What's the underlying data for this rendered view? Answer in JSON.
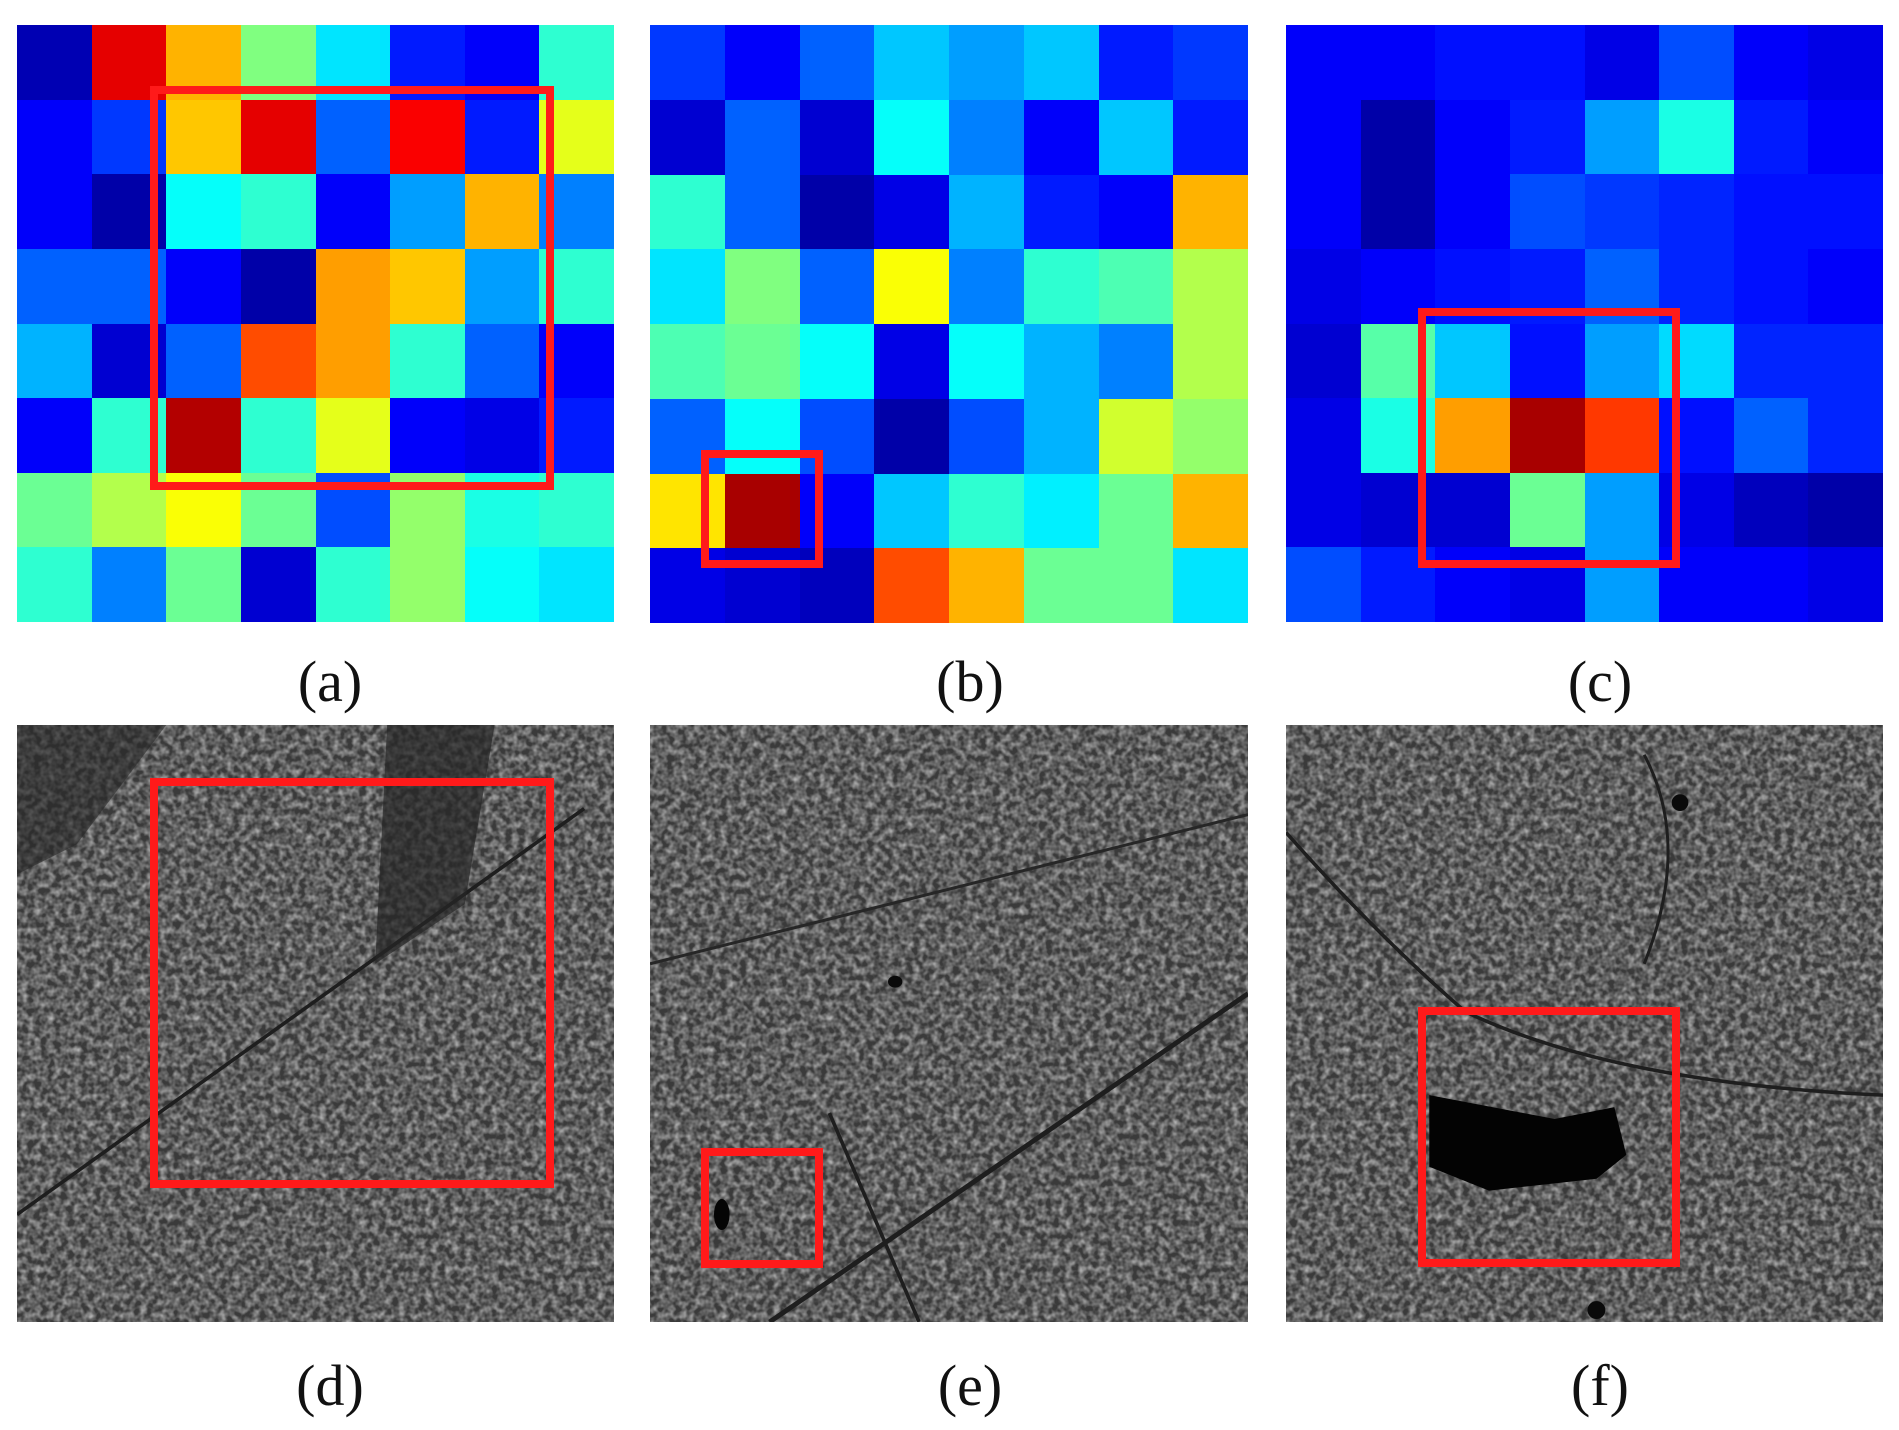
{
  "figure": {
    "captions": [
      "(a)",
      "(b)",
      "(c)",
      "(d)",
      "(e)",
      "(f)"
    ],
    "box_color": "#ff1a1a",
    "colormap": "jet",
    "heatmaps": [
      {
        "label": "(a)",
        "grid": [
          [
            0.05,
            0.9,
            0.7,
            0.5,
            0.35,
            0.15,
            0.12,
            0.42
          ],
          [
            0.12,
            0.18,
            0.68,
            0.9,
            0.22,
            0.88,
            0.15,
            0.6
          ],
          [
            0.12,
            0.04,
            0.38,
            0.42,
            0.12,
            0.28,
            0.7,
            0.25
          ],
          [
            0.22,
            0.22,
            0.12,
            0.04,
            0.72,
            0.68,
            0.28,
            0.42
          ],
          [
            0.3,
            0.08,
            0.22,
            0.8,
            0.72,
            0.42,
            0.22,
            0.12
          ],
          [
            0.12,
            0.42,
            0.95,
            0.42,
            0.6,
            0.12,
            0.1,
            0.15
          ],
          [
            0.48,
            0.55,
            0.62,
            0.48,
            0.2,
            0.52,
            0.4,
            0.42
          ],
          [
            0.42,
            0.25,
            0.48,
            0.08,
            0.42,
            0.52,
            0.38,
            0.35
          ]
        ]
      },
      {
        "label": "(b)",
        "grid": [
          [
            0.18,
            0.12,
            0.22,
            0.32,
            0.28,
            0.32,
            0.15,
            0.18
          ],
          [
            0.08,
            0.22,
            0.08,
            0.38,
            0.25,
            0.12,
            0.32,
            0.15
          ],
          [
            0.42,
            0.22,
            0.04,
            0.1,
            0.3,
            0.15,
            0.12,
            0.7
          ],
          [
            0.35,
            0.5,
            0.22,
            0.62,
            0.25,
            0.42,
            0.45,
            0.55
          ],
          [
            0.45,
            0.48,
            0.38,
            0.1,
            0.38,
            0.3,
            0.25,
            0.55
          ],
          [
            0.22,
            0.38,
            0.2,
            0.04,
            0.2,
            0.3,
            0.58,
            0.52
          ],
          [
            0.65,
            0.96,
            0.12,
            0.32,
            0.42,
            0.36,
            0.48,
            0.7
          ],
          [
            0.1,
            0.08,
            0.06,
            0.8,
            0.7,
            0.48,
            0.48,
            0.35
          ]
        ]
      },
      {
        "label": "(c)",
        "grid": [
          [
            0.12,
            0.12,
            0.14,
            0.14,
            0.1,
            0.2,
            0.12,
            0.1
          ],
          [
            0.12,
            0.04,
            0.12,
            0.15,
            0.28,
            0.4,
            0.15,
            0.12
          ],
          [
            0.12,
            0.04,
            0.12,
            0.2,
            0.18,
            0.16,
            0.14,
            0.14
          ],
          [
            0.1,
            0.12,
            0.14,
            0.15,
            0.22,
            0.16,
            0.14,
            0.12
          ],
          [
            0.08,
            0.46,
            0.32,
            0.14,
            0.28,
            0.34,
            0.16,
            0.16
          ],
          [
            0.1,
            0.4,
            0.72,
            0.96,
            0.82,
            0.14,
            0.22,
            0.16
          ],
          [
            0.1,
            0.08,
            0.08,
            0.48,
            0.28,
            0.1,
            0.06,
            0.04
          ],
          [
            0.2,
            0.15,
            0.12,
            0.1,
            0.28,
            0.12,
            0.12,
            0.1
          ]
        ]
      }
    ],
    "sar_images": [
      {
        "label": "(d)"
      },
      {
        "label": "(e)"
      },
      {
        "label": "(f)"
      }
    ]
  }
}
